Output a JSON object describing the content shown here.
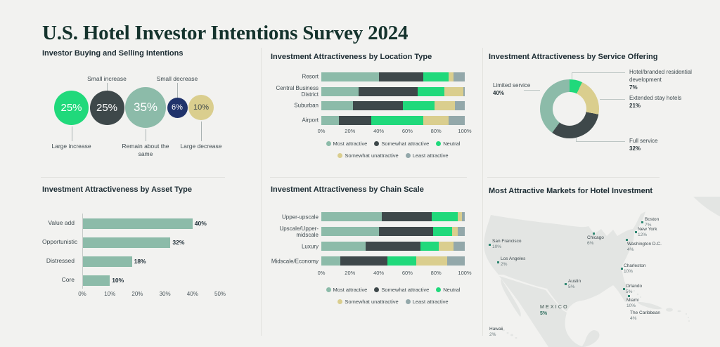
{
  "page_title": "U.S. Hotel Investor Intentions Survey 2024",
  "colors": {
    "background": "#F2F2F0",
    "bright_green": "#20D97B",
    "sage": "#8CBBA9",
    "dark_slate": "#3E484A",
    "khaki": "#DACE8E",
    "gray_blue": "#93A8AA",
    "navy": "#20336B",
    "map_land": "#E3E5E3",
    "map_dot": "#2F8772",
    "title_ink": "#15332D"
  },
  "chart_data": [
    {
      "type": "bubble",
      "title": "Investor Buying and Selling Intentions",
      "points": [
        {
          "label": "Large increase",
          "value": 25,
          "value_text": "25%",
          "color_key": "bright_green",
          "text_color": "#FFFFFF",
          "label_pos": "below"
        },
        {
          "label": "Small increase",
          "value": 25,
          "value_text": "25%",
          "color_key": "dark_slate",
          "text_color": "#FFFFFF",
          "label_pos": "above"
        },
        {
          "label": "Remain about the same",
          "value": 35,
          "value_text": "35%",
          "color_key": "sage",
          "text_color": "#FFFFFF",
          "label_pos": "below"
        },
        {
          "label": "Small decrease",
          "value": 6,
          "value_text": "6%",
          "color_key": "navy",
          "text_color": "#FFFFFF",
          "label_pos": "above"
        },
        {
          "label": "Large decrease",
          "value": 10,
          "value_text": "10%",
          "color_key": "khaki",
          "text_color": "#3E484A",
          "label_pos": "below"
        }
      ]
    },
    {
      "type": "stacked_bar",
      "title": "Investment Attractiveness by Location Type",
      "categories": [
        "Resort",
        "Central Business District",
        "Suburban",
        "Airport"
      ],
      "series": [
        {
          "name": "Most attractive",
          "color_key": "sage",
          "values": [
            40,
            26,
            22,
            12
          ]
        },
        {
          "name": "Somewhat attractive",
          "color_key": "dark_slate",
          "values": [
            31,
            41,
            35,
            23
          ]
        },
        {
          "name": "Neutral",
          "color_key": "bright_green",
          "values": [
            18,
            19,
            22,
            36
          ]
        },
        {
          "name": "Somewhat unattractive",
          "color_key": "khaki",
          "values": [
            3,
            13,
            14,
            18
          ]
        },
        {
          "name": "Least attractive",
          "color_key": "gray_blue",
          "values": [
            8,
            1,
            7,
            11
          ]
        }
      ],
      "x_ticks": [
        "0%",
        "20%",
        "40%",
        "60%",
        "80%",
        "100%"
      ],
      "xlim": [
        0,
        100
      ],
      "legend_rows": [
        [
          "Most attractive",
          "Somewhat attractive",
          "Neutral"
        ],
        [
          "Somewhat unattractive",
          "Least attractive"
        ]
      ]
    },
    {
      "type": "donut",
      "title": "Investment Attractiveness by Service Offering",
      "slices": [
        {
          "label": "Hotel/branded residential development",
          "value": 7,
          "value_text": "7%",
          "color_key": "bright_green"
        },
        {
          "label": "Extended stay hotels",
          "value": 21,
          "value_text": "21%",
          "color_key": "khaki"
        },
        {
          "label": "Full service",
          "value": 32,
          "value_text": "32%",
          "color_key": "dark_slate"
        },
        {
          "label": "Limited service",
          "value": 40,
          "value_text": "40%",
          "color_key": "sage"
        }
      ]
    },
    {
      "type": "bar",
      "title": "Investment Attractiveness by Asset Type",
      "categories": [
        "Value add",
        "Opportunistic",
        "Distressed",
        "Core"
      ],
      "values": [
        40,
        32,
        18,
        10
      ],
      "value_texts": [
        "40%",
        "32%",
        "18%",
        "10%"
      ],
      "color_key": "sage",
      "x_ticks": [
        "0%",
        "10%",
        "20%",
        "30%",
        "40%",
        "50%"
      ],
      "xlim": [
        0,
        50
      ]
    },
    {
      "type": "stacked_bar",
      "title": "Investment Attractiveness by Chain Scale",
      "categories": [
        "Upper-upscale",
        "Upscale/Upper-midscale",
        "Luxury",
        "Midscale/Economy"
      ],
      "series": [
        {
          "name": "Most attractive",
          "color_key": "sage",
          "values": [
            42,
            40,
            31,
            13
          ]
        },
        {
          "name": "Somewhat attractive",
          "color_key": "dark_slate",
          "values": [
            35,
            38,
            38,
            33
          ]
        },
        {
          "name": "Neutral",
          "color_key": "bright_green",
          "values": [
            18,
            13,
            13,
            20
          ]
        },
        {
          "name": "Somewhat unattractive",
          "color_key": "khaki",
          "values": [
            3,
            4,
            10,
            22
          ]
        },
        {
          "name": "Least attractive",
          "color_key": "gray_blue",
          "values": [
            2,
            5,
            8,
            12
          ]
        }
      ],
      "x_ticks": [
        "0%",
        "20%",
        "40%",
        "60%",
        "80%",
        "100%"
      ],
      "xlim": [
        0,
        100
      ],
      "legend_rows": [
        [
          "Most attractive",
          "Somewhat attractive",
          "Neutral"
        ],
        [
          "Somewhat unattractive",
          "Least attractive"
        ]
      ]
    },
    {
      "type": "map",
      "title": "Most Attractive Markets for Hotel Investment",
      "markets": [
        {
          "name": "San Francisco",
          "value": "10%",
          "dot": {
            "x": 15,
            "y": 67
          },
          "label": {
            "x": 20,
            "y": 60
          }
        },
        {
          "name": "Los Angeles",
          "value": "2%",
          "dot": {
            "x": 27,
            "y": 92
          },
          "label": {
            "x": 32,
            "y": 85
          }
        },
        {
          "name": "Chicago",
          "value": "6%",
          "dot": {
            "x": 163,
            "y": 51
          },
          "label": {
            "x": 155,
            "y": 55
          }
        },
        {
          "name": "Boston",
          "value": "7%",
          "dot": {
            "x": 232,
            "y": 35
          },
          "label": {
            "x": 237,
            "y": 29
          }
        },
        {
          "name": "New York",
          "value": "12%",
          "dot": {
            "x": 223,
            "y": 49
          },
          "label": {
            "x": 227,
            "y": 43
          }
        },
        {
          "name": "Washington D.C.",
          "value": "4%",
          "dot": {
            "x": 210,
            "y": 60
          },
          "label": {
            "x": 212,
            "y": 64
          }
        },
        {
          "name": "Charleston",
          "value": "10%",
          "dot": {
            "x": 203,
            "y": 101
          },
          "label": {
            "x": 207,
            "y": 95
          }
        },
        {
          "name": "Austin",
          "value": "5%",
          "dot": {
            "x": 123,
            "y": 123
          },
          "label": {
            "x": 128,
            "y": 117
          }
        },
        {
          "name": "Orlando",
          "value": "5%",
          "dot": {
            "x": 206,
            "y": 130
          },
          "label": {
            "x": 210,
            "y": 124
          }
        },
        {
          "name": "Miami",
          "value": "10%",
          "dot": {
            "x": 213,
            "y": 140
          },
          "label": {
            "x": 211,
            "y": 144
          }
        },
        {
          "name": "The Caribbean",
          "value": "4%",
          "label": {
            "x": 216,
            "y": 162
          }
        },
        {
          "name": "Hawaii",
          "value": "2%",
          "label": {
            "x": 16,
            "y": 185
          }
        },
        {
          "name": "Mexico",
          "value": "5%",
          "country": true,
          "label": {
            "x": 88,
            "y": 153
          }
        }
      ]
    }
  ]
}
